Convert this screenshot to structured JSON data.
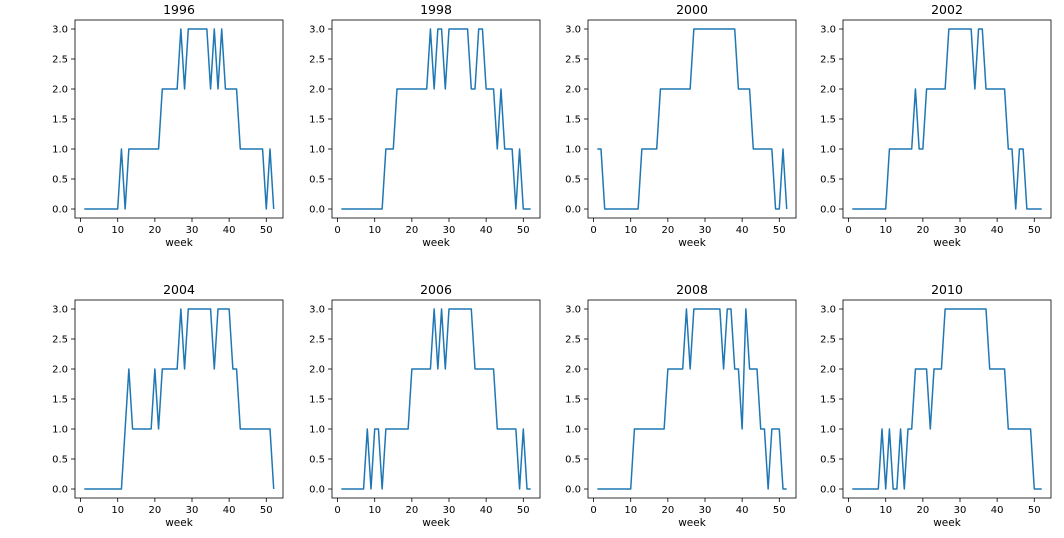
{
  "chart_data": [
    {
      "type": "line",
      "title": "1996",
      "xlabel": "week",
      "ylabel": "",
      "xlim": [
        -1.5,
        54.5
      ],
      "ylim": [
        -0.15,
        3.15
      ],
      "xticks": [
        0,
        10,
        20,
        30,
        40,
        50
      ],
      "xtick_labels": [
        "0",
        "10",
        "20",
        "30",
        "40",
        "50"
      ],
      "yticks": [
        0,
        0.5,
        1,
        1.5,
        2,
        2.5,
        3
      ],
      "ytick_labels": [
        "0.0",
        "0.5",
        "1.0",
        "1.5",
        "2.0",
        "2.5",
        "3.0"
      ],
      "series": [
        {
          "name": "1996",
          "color": "#1f77b4",
          "x": [
            1,
            2,
            3,
            4,
            5,
            6,
            7,
            8,
            9,
            10,
            11,
            12,
            13,
            14,
            15,
            16,
            17,
            18,
            19,
            20,
            21,
            22,
            23,
            24,
            25,
            26,
            27,
            28,
            29,
            30,
            31,
            32,
            33,
            34,
            35,
            36,
            37,
            38,
            39,
            40,
            41,
            42,
            43,
            44,
            45,
            46,
            47,
            48,
            49,
            50,
            51,
            52
          ],
          "y": [
            0,
            0,
            0,
            0,
            0,
            0,
            0,
            0,
            0,
            0,
            1,
            0,
            1,
            1,
            1,
            1,
            1,
            1,
            1,
            1,
            1,
            2,
            2,
            2,
            2,
            2,
            3,
            2,
            3,
            3,
            3,
            3,
            3,
            3,
            2,
            3,
            2,
            3,
            2,
            2,
            2,
            2,
            1,
            1,
            1,
            1,
            1,
            1,
            1,
            0,
            1,
            0
          ]
        }
      ]
    },
    {
      "type": "line",
      "title": "1998",
      "xlabel": "week",
      "ylabel": "",
      "xlim": [
        -1.5,
        54.5
      ],
      "ylim": [
        -0.15,
        3.15
      ],
      "xticks": [
        0,
        10,
        20,
        30,
        40,
        50
      ],
      "xtick_labels": [
        "0",
        "10",
        "20",
        "30",
        "40",
        "50"
      ],
      "yticks": [
        0,
        0.5,
        1,
        1.5,
        2,
        2.5,
        3
      ],
      "ytick_labels": [
        "0.0",
        "0.5",
        "1.0",
        "1.5",
        "2.0",
        "2.5",
        "3.0"
      ],
      "series": [
        {
          "name": "1998",
          "color": "#1f77b4",
          "x": [
            1,
            2,
            3,
            4,
            5,
            6,
            7,
            8,
            9,
            10,
            11,
            12,
            13,
            14,
            15,
            16,
            17,
            18,
            19,
            20,
            21,
            22,
            23,
            24,
            25,
            26,
            27,
            28,
            29,
            30,
            31,
            32,
            33,
            34,
            35,
            36,
            37,
            38,
            39,
            40,
            41,
            42,
            43,
            44,
            45,
            46,
            47,
            48,
            49,
            50,
            51,
            52
          ],
          "y": [
            0,
            0,
            0,
            0,
            0,
            0,
            0,
            0,
            0,
            0,
            0,
            0,
            1,
            1,
            1,
            2,
            2,
            2,
            2,
            2,
            2,
            2,
            2,
            2,
            3,
            2,
            3,
            3,
            2,
            3,
            3,
            3,
            3,
            3,
            3,
            2,
            2,
            3,
            3,
            2,
            2,
            2,
            1,
            2,
            1,
            1,
            1,
            0,
            1,
            0,
            0,
            0
          ]
        }
      ]
    },
    {
      "type": "line",
      "title": "2000",
      "xlabel": "week",
      "ylabel": "",
      "xlim": [
        -1.5,
        54.5
      ],
      "ylim": [
        -0.15,
        3.15
      ],
      "xticks": [
        0,
        10,
        20,
        30,
        40,
        50
      ],
      "xtick_labels": [
        "0",
        "10",
        "20",
        "30",
        "40",
        "50"
      ],
      "yticks": [
        0,
        0.5,
        1,
        1.5,
        2,
        2.5,
        3
      ],
      "ytick_labels": [
        "0.0",
        "0.5",
        "1.0",
        "1.5",
        "2.0",
        "2.5",
        "3.0"
      ],
      "series": [
        {
          "name": "2000",
          "color": "#1f77b4",
          "x": [
            1,
            2,
            3,
            4,
            5,
            6,
            7,
            8,
            9,
            10,
            11,
            12,
            13,
            14,
            15,
            16,
            17,
            18,
            19,
            20,
            21,
            22,
            23,
            24,
            25,
            26,
            27,
            28,
            29,
            30,
            31,
            32,
            33,
            34,
            35,
            36,
            37,
            38,
            39,
            40,
            41,
            42,
            43,
            44,
            45,
            46,
            47,
            48,
            49,
            50,
            51,
            52
          ],
          "y": [
            1,
            1,
            0,
            0,
            0,
            0,
            0,
            0,
            0,
            0,
            0,
            0,
            1,
            1,
            1,
            1,
            1,
            2,
            2,
            2,
            2,
            2,
            2,
            2,
            2,
            2,
            3,
            3,
            3,
            3,
            3,
            3,
            3,
            3,
            3,
            3,
            3,
            3,
            2,
            2,
            2,
            2,
            1,
            1,
            1,
            1,
            1,
            1,
            0,
            0,
            1,
            0
          ]
        }
      ]
    },
    {
      "type": "line",
      "title": "2002",
      "xlabel": "week",
      "ylabel": "",
      "xlim": [
        -1.5,
        54.5
      ],
      "ylim": [
        -0.15,
        3.15
      ],
      "xticks": [
        0,
        10,
        20,
        30,
        40,
        50
      ],
      "xtick_labels": [
        "0",
        "10",
        "20",
        "30",
        "40",
        "50"
      ],
      "yticks": [
        0,
        0.5,
        1,
        1.5,
        2,
        2.5,
        3
      ],
      "ytick_labels": [
        "0.0",
        "0.5",
        "1.0",
        "1.5",
        "2.0",
        "2.5",
        "3.0"
      ],
      "series": [
        {
          "name": "2002",
          "color": "#1f77b4",
          "x": [
            1,
            2,
            3,
            4,
            5,
            6,
            7,
            8,
            9,
            10,
            11,
            12,
            13,
            14,
            15,
            16,
            17,
            18,
            19,
            20,
            21,
            22,
            23,
            24,
            25,
            26,
            27,
            28,
            29,
            30,
            31,
            32,
            33,
            34,
            35,
            36,
            37,
            38,
            39,
            40,
            41,
            42,
            43,
            44,
            45,
            46,
            47,
            48,
            49,
            50,
            51,
            52
          ],
          "y": [
            0,
            0,
            0,
            0,
            0,
            0,
            0,
            0,
            0,
            0,
            1,
            1,
            1,
            1,
            1,
            1,
            1,
            2,
            1,
            1,
            2,
            2,
            2,
            2,
            2,
            2,
            3,
            3,
            3,
            3,
            3,
            3,
            3,
            2,
            3,
            3,
            2,
            2,
            2,
            2,
            2,
            2,
            1,
            1,
            0,
            1,
            1,
            0,
            0,
            0,
            0,
            0
          ]
        }
      ]
    },
    {
      "type": "line",
      "title": "2004",
      "xlabel": "week",
      "ylabel": "",
      "xlim": [
        -1.5,
        54.5
      ],
      "ylim": [
        -0.15,
        3.15
      ],
      "xticks": [
        0,
        10,
        20,
        30,
        40,
        50
      ],
      "xtick_labels": [
        "0",
        "10",
        "20",
        "30",
        "40",
        "50"
      ],
      "yticks": [
        0,
        0.5,
        1,
        1.5,
        2,
        2.5,
        3
      ],
      "ytick_labels": [
        "0.0",
        "0.5",
        "1.0",
        "1.5",
        "2.0",
        "2.5",
        "3.0"
      ],
      "series": [
        {
          "name": "2004",
          "color": "#1f77b4",
          "x": [
            1,
            2,
            3,
            4,
            5,
            6,
            7,
            8,
            9,
            10,
            11,
            12,
            13,
            14,
            15,
            16,
            17,
            18,
            19,
            20,
            21,
            22,
            23,
            24,
            25,
            26,
            27,
            28,
            29,
            30,
            31,
            32,
            33,
            34,
            35,
            36,
            37,
            38,
            39,
            40,
            41,
            42,
            43,
            44,
            45,
            46,
            47,
            48,
            49,
            50,
            51,
            52
          ],
          "y": [
            0,
            0,
            0,
            0,
            0,
            0,
            0,
            0,
            0,
            0,
            0,
            1,
            2,
            1,
            1,
            1,
            1,
            1,
            1,
            2,
            1,
            2,
            2,
            2,
            2,
            2,
            3,
            2,
            3,
            3,
            3,
            3,
            3,
            3,
            3,
            2,
            3,
            3,
            3,
            3,
            2,
            2,
            1,
            1,
            1,
            1,
            1,
            1,
            1,
            1,
            1,
            0
          ]
        }
      ]
    },
    {
      "type": "line",
      "title": "2006",
      "xlabel": "week",
      "ylabel": "",
      "xlim": [
        -1.5,
        54.5
      ],
      "ylim": [
        -0.15,
        3.15
      ],
      "xticks": [
        0,
        10,
        20,
        30,
        40,
        50
      ],
      "xtick_labels": [
        "0",
        "10",
        "20",
        "30",
        "40",
        "50"
      ],
      "yticks": [
        0,
        0.5,
        1,
        1.5,
        2,
        2.5,
        3
      ],
      "ytick_labels": [
        "0.0",
        "0.5",
        "1.0",
        "1.5",
        "2.0",
        "2.5",
        "3.0"
      ],
      "series": [
        {
          "name": "2006",
          "color": "#1f77b4",
          "x": [
            1,
            2,
            3,
            4,
            5,
            6,
            7,
            8,
            9,
            10,
            11,
            12,
            13,
            14,
            15,
            16,
            17,
            18,
            19,
            20,
            21,
            22,
            23,
            24,
            25,
            26,
            27,
            28,
            29,
            30,
            31,
            32,
            33,
            34,
            35,
            36,
            37,
            38,
            39,
            40,
            41,
            42,
            43,
            44,
            45,
            46,
            47,
            48,
            49,
            50,
            51,
            52
          ],
          "y": [
            0,
            0,
            0,
            0,
            0,
            0,
            0,
            1,
            0,
            1,
            1,
            0,
            1,
            1,
            1,
            1,
            1,
            1,
            1,
            2,
            2,
            2,
            2,
            2,
            2,
            3,
            2,
            3,
            2,
            3,
            3,
            3,
            3,
            3,
            3,
            3,
            2,
            2,
            2,
            2,
            2,
            2,
            1,
            1,
            1,
            1,
            1,
            1,
            0,
            1,
            0,
            0
          ]
        }
      ]
    },
    {
      "type": "line",
      "title": "2008",
      "xlabel": "week",
      "ylabel": "",
      "xlim": [
        -1.5,
        54.5
      ],
      "ylim": [
        -0.15,
        3.15
      ],
      "xticks": [
        0,
        10,
        20,
        30,
        40,
        50
      ],
      "xtick_labels": [
        "0",
        "10",
        "20",
        "30",
        "40",
        "50"
      ],
      "yticks": [
        0,
        0.5,
        1,
        1.5,
        2,
        2.5,
        3
      ],
      "ytick_labels": [
        "0.0",
        "0.5",
        "1.0",
        "1.5",
        "2.0",
        "2.5",
        "3.0"
      ],
      "series": [
        {
          "name": "2008",
          "color": "#1f77b4",
          "x": [
            1,
            2,
            3,
            4,
            5,
            6,
            7,
            8,
            9,
            10,
            11,
            12,
            13,
            14,
            15,
            16,
            17,
            18,
            19,
            20,
            21,
            22,
            23,
            24,
            25,
            26,
            27,
            28,
            29,
            30,
            31,
            32,
            33,
            34,
            35,
            36,
            37,
            38,
            39,
            40,
            41,
            42,
            43,
            44,
            45,
            46,
            47,
            48,
            49,
            50,
            51,
            52
          ],
          "y": [
            0,
            0,
            0,
            0,
            0,
            0,
            0,
            0,
            0,
            0,
            1,
            1,
            1,
            1,
            1,
            1,
            1,
            1,
            1,
            2,
            2,
            2,
            2,
            2,
            3,
            2,
            3,
            3,
            3,
            3,
            3,
            3,
            3,
            3,
            2,
            3,
            3,
            2,
            2,
            1,
            3,
            2,
            2,
            2,
            1,
            1,
            0,
            1,
            1,
            1,
            0,
            0
          ]
        }
      ]
    },
    {
      "type": "line",
      "title": "2010",
      "xlabel": "week",
      "ylabel": "",
      "xlim": [
        -1.5,
        54.5
      ],
      "ylim": [
        -0.15,
        3.15
      ],
      "xticks": [
        0,
        10,
        20,
        30,
        40,
        50
      ],
      "xtick_labels": [
        "0",
        "10",
        "20",
        "30",
        "40",
        "50"
      ],
      "yticks": [
        0,
        0.5,
        1,
        1.5,
        2,
        2.5,
        3
      ],
      "ytick_labels": [
        "0.0",
        "0.5",
        "1.0",
        "1.5",
        "2.0",
        "2.5",
        "3.0"
      ],
      "series": [
        {
          "name": "2010",
          "color": "#1f77b4",
          "x": [
            1,
            2,
            3,
            4,
            5,
            6,
            7,
            8,
            9,
            10,
            11,
            12,
            13,
            14,
            15,
            16,
            17,
            18,
            19,
            20,
            21,
            22,
            23,
            24,
            25,
            26,
            27,
            28,
            29,
            30,
            31,
            32,
            33,
            34,
            35,
            36,
            37,
            38,
            39,
            40,
            41,
            42,
            43,
            44,
            45,
            46,
            47,
            48,
            49,
            50,
            51,
            52
          ],
          "y": [
            0,
            0,
            0,
            0,
            0,
            0,
            0,
            0,
            1,
            0,
            1,
            0,
            0,
            1,
            0,
            1,
            1,
            2,
            2,
            2,
            2,
            1,
            2,
            2,
            2,
            3,
            3,
            3,
            3,
            3,
            3,
            3,
            3,
            3,
            3,
            3,
            3,
            2,
            2,
            2,
            2,
            2,
            1,
            1,
            1,
            1,
            1,
            1,
            1,
            0,
            0,
            0
          ]
        }
      ]
    }
  ]
}
